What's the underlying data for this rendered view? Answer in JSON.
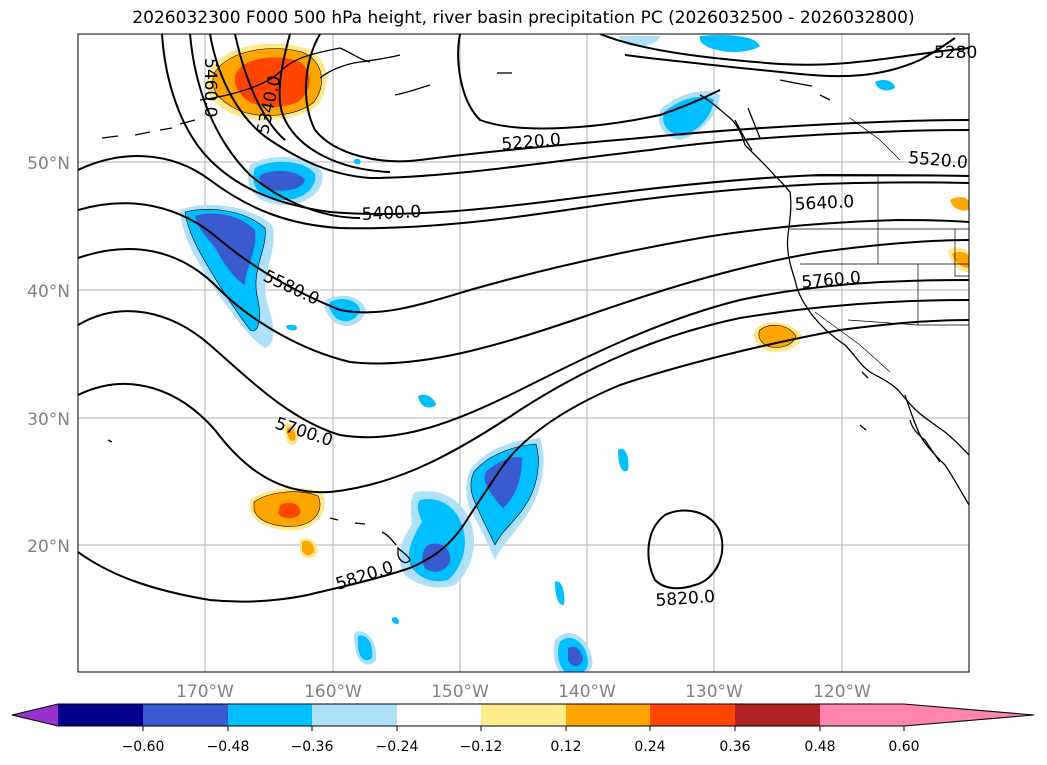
{
  "title": "2026032300 F000 500 hPa height, river basin precipitation PC (2026032500 - 2026032800)",
  "lat_labels": [
    "50°N",
    "40°N",
    "30°N",
    "20°N"
  ],
  "lon_labels": [
    "170°W",
    "160°W",
    "150°W",
    "140°W",
    "130°W",
    "120°W"
  ],
  "contour_labels": [
    "5460.0",
    "5340.0",
    "5280",
    "5220.0",
    "5520.0",
    "5400.0",
    "5640.0",
    "5580.0",
    "5760.0",
    "5700.0",
    "5820.0",
    "5820.0"
  ],
  "colorbar": {
    "ticks": [
      "−0.60",
      "−0.48",
      "−0.36",
      "−0.24",
      "−0.12",
      "0.12",
      "0.24",
      "0.36",
      "0.48",
      "0.60"
    ],
    "colors": [
      "#9932cc",
      "#00008b",
      "#3a5bd0",
      "#00bfff",
      "#afe0fa",
      "#ffffff",
      "#ffec8b",
      "#ffa500",
      "#ff4500",
      "#b22222",
      "#ff85b0"
    ]
  },
  "colors": {
    "neg_strong": "#3a5bd0",
    "neg_mid": "#00bfff",
    "neg_weak": "#afe0fa",
    "pos_weak": "#ffe88a",
    "pos_mid": "#ffa500",
    "pos_strong": "#ff4500"
  }
}
